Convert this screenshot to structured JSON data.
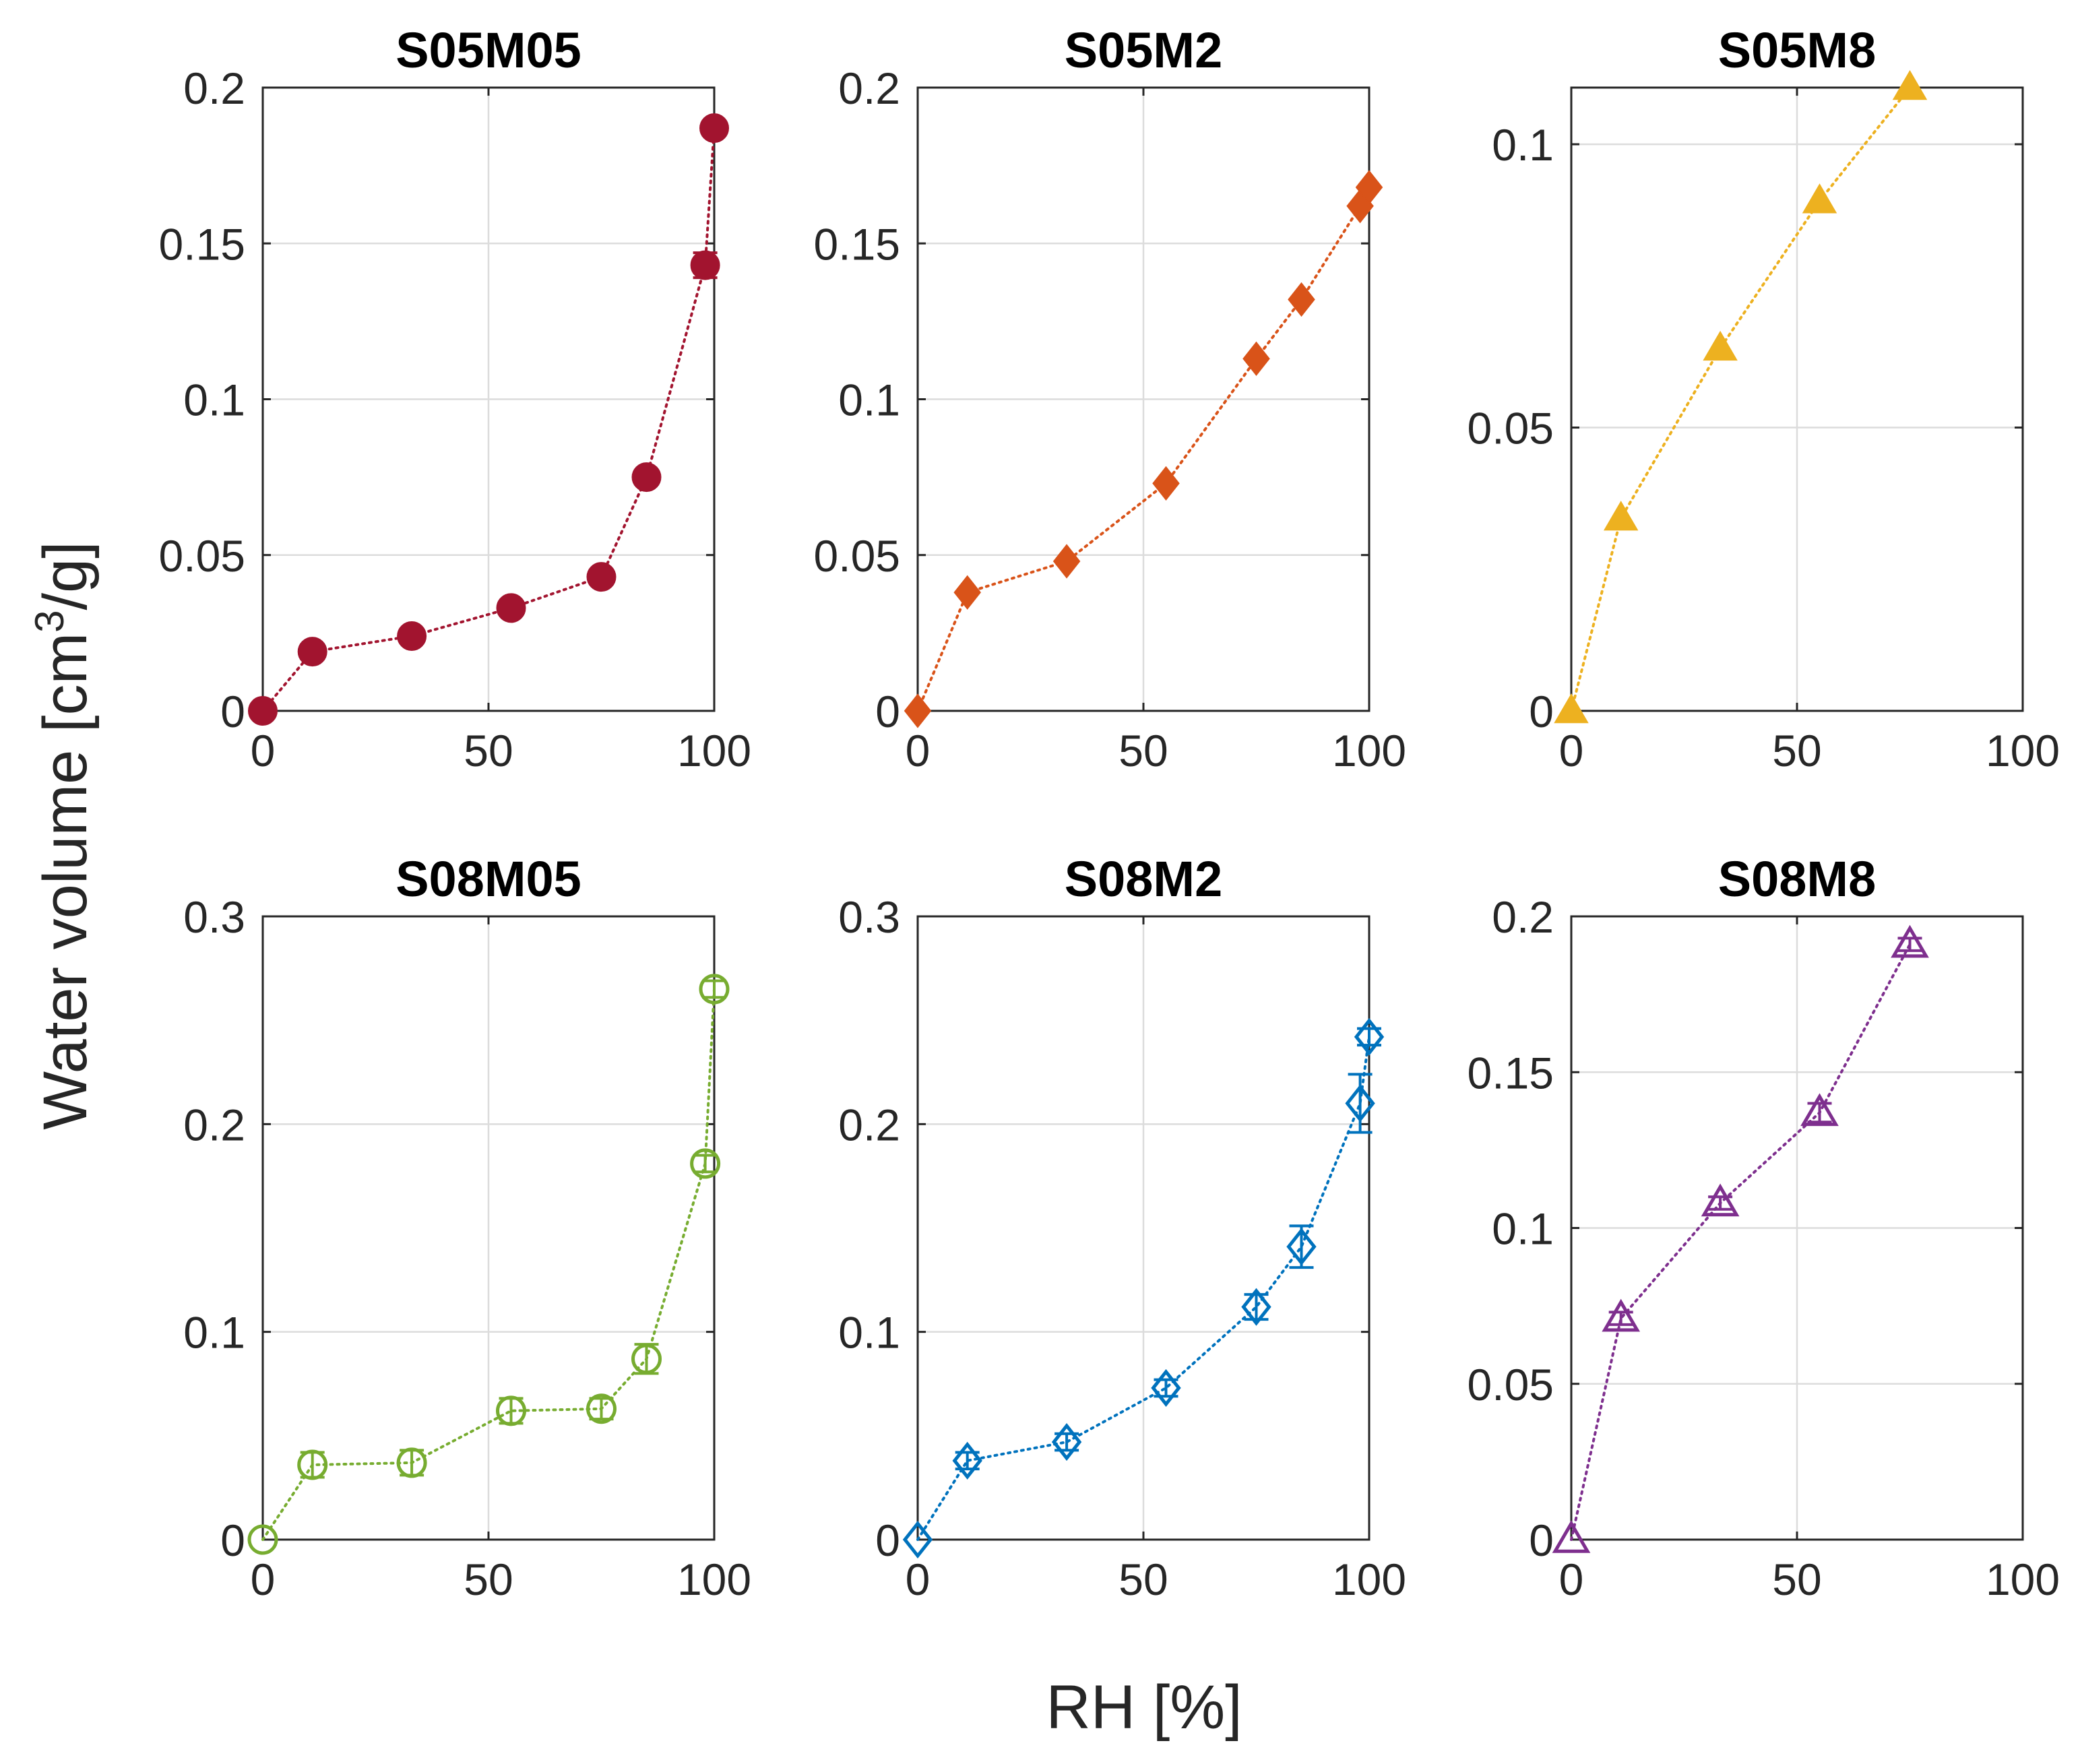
{
  "figure": {
    "ylabel_main": "Water volume [cm",
    "ylabel_sup": "3",
    "ylabel_tail": "/g]",
    "xlabel": "RH [%]"
  },
  "chart_data": [
    {
      "type": "line",
      "title": "S05M05",
      "xlim": [
        0,
        100
      ],
      "ylim": [
        0,
        0.2
      ],
      "xticks": [
        0,
        50,
        100
      ],
      "xtick_labels": [
        "0",
        "50",
        "100"
      ],
      "yticks": [
        0,
        0.05,
        0.1,
        0.15,
        0.2
      ],
      "ytick_labels": [
        "0",
        "0.05",
        "0.1",
        "0.15",
        "0.2"
      ],
      "grid": true,
      "color": "#A2142F",
      "marker": "circle",
      "filled": true,
      "x": [
        0,
        11,
        33,
        55,
        75,
        85,
        98,
        100
      ],
      "y": [
        0,
        0.019,
        0.024,
        0.033,
        0.043,
        0.075,
        0.143,
        0.187
      ],
      "err": [
        0,
        0,
        0,
        0,
        0,
        0,
        0.004,
        0
      ]
    },
    {
      "type": "line",
      "title": "S05M2",
      "xlim": [
        0,
        100
      ],
      "ylim": [
        0,
        0.2
      ],
      "xticks": [
        0,
        50,
        100
      ],
      "xtick_labels": [
        "0",
        "50",
        "100"
      ],
      "yticks": [
        0,
        0.05,
        0.1,
        0.15,
        0.2
      ],
      "ytick_labels": [
        "0",
        "0.05",
        "0.1",
        "0.15",
        "0.2"
      ],
      "grid": true,
      "color": "#D95319",
      "marker": "diamond",
      "filled": true,
      "x": [
        0,
        11,
        33,
        55,
        75,
        85,
        98,
        100
      ],
      "y": [
        0,
        0.038,
        0.048,
        0.073,
        0.113,
        0.132,
        0.162,
        0.168
      ],
      "err": [
        0,
        0,
        0,
        0,
        0,
        0,
        0,
        0
      ]
    },
    {
      "type": "line",
      "title": "S05M8",
      "xlim": [
        0,
        100
      ],
      "ylim": [
        0,
        0.11
      ],
      "xticks": [
        0,
        50,
        100
      ],
      "xtick_labels": [
        "0",
        "50",
        "100"
      ],
      "yticks": [
        0,
        0.05,
        0.1
      ],
      "ytick_labels": [
        "0",
        "0.05",
        "0.1"
      ],
      "grid": true,
      "color": "#EDB120",
      "marker": "triangle",
      "filled": true,
      "x": [
        0,
        11,
        33,
        55,
        75
      ],
      "y": [
        0,
        0.034,
        0.064,
        0.09,
        0.11
      ],
      "err": [
        0,
        0,
        0,
        0,
        0
      ]
    },
    {
      "type": "line",
      "title": "S08M05",
      "xlim": [
        0,
        100
      ],
      "ylim": [
        0,
        0.3
      ],
      "xticks": [
        0,
        50,
        100
      ],
      "xtick_labels": [
        "0",
        "50",
        "100"
      ],
      "yticks": [
        0,
        0.1,
        0.2,
        0.3
      ],
      "ytick_labels": [
        "0",
        "0.1",
        "0.2",
        "0.3"
      ],
      "grid": true,
      "color": "#77AC30",
      "marker": "circle",
      "filled": false,
      "x": [
        0,
        11,
        33,
        55,
        75,
        85,
        98,
        100
      ],
      "y": [
        0,
        0.036,
        0.037,
        0.062,
        0.063,
        0.087,
        0.181,
        0.265
      ],
      "err": [
        0,
        0.006,
        0.006,
        0.006,
        0.005,
        0.007,
        0.004,
        0.004
      ]
    },
    {
      "type": "line",
      "title": "S08M2",
      "xlim": [
        0,
        100
      ],
      "ylim": [
        0,
        0.3
      ],
      "xticks": [
        0,
        50,
        100
      ],
      "xtick_labels": [
        "0",
        "50",
        "100"
      ],
      "yticks": [
        0,
        0.1,
        0.2,
        0.3
      ],
      "ytick_labels": [
        "0",
        "0.1",
        "0.2",
        "0.3"
      ],
      "grid": true,
      "color": "#0072BD",
      "marker": "diamond",
      "filled": false,
      "x": [
        0,
        11,
        33,
        55,
        75,
        85,
        98,
        100
      ],
      "y": [
        0,
        0.038,
        0.047,
        0.073,
        0.112,
        0.141,
        0.21,
        0.242
      ],
      "err": [
        0,
        0.004,
        0.004,
        0.004,
        0.006,
        0.01,
        0.014,
        0.004
      ]
    },
    {
      "type": "line",
      "title": "S08M8",
      "xlim": [
        0,
        100
      ],
      "ylim": [
        0,
        0.2
      ],
      "xticks": [
        0,
        50,
        100
      ],
      "xtick_labels": [
        "0",
        "50",
        "100"
      ],
      "yticks": [
        0,
        0.05,
        0.1,
        0.15,
        0.2
      ],
      "ytick_labels": [
        "0",
        "0.05",
        "0.1",
        "0.15",
        "0.2"
      ],
      "grid": true,
      "color": "#7E2F8E",
      "marker": "triangle",
      "filled": false,
      "x": [
        0,
        11,
        33,
        55,
        75
      ],
      "y": [
        0,
        0.071,
        0.108,
        0.137,
        0.191
      ],
      "err": [
        0,
        0.002,
        0.002,
        0.003,
        0.002
      ]
    }
  ]
}
